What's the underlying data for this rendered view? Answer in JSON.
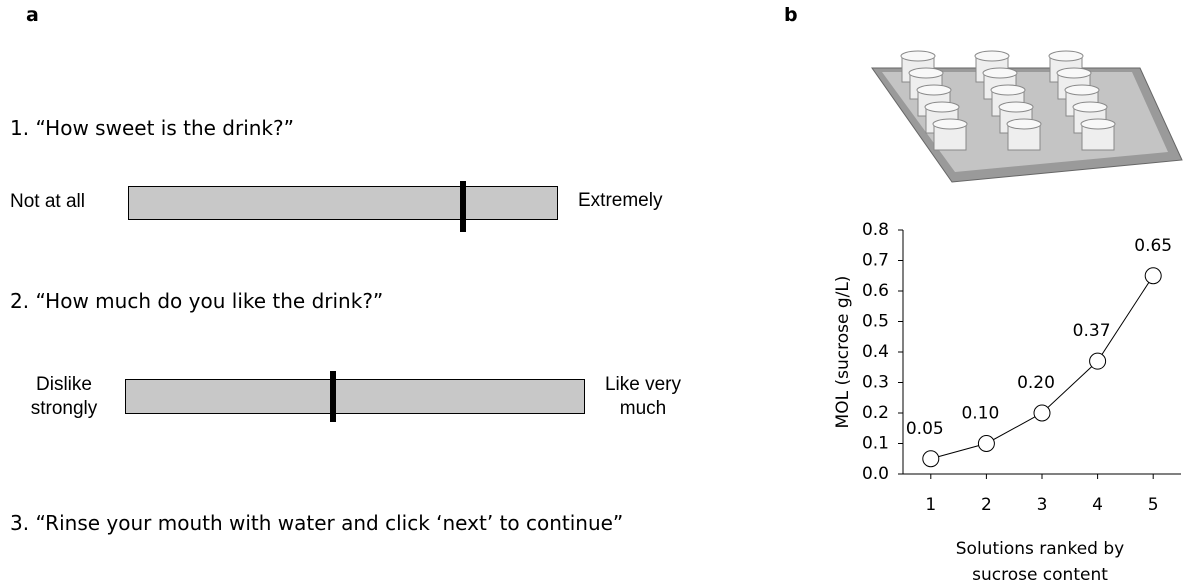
{
  "panel_a": {
    "label": "a",
    "questions": [
      "1. “How sweet is the drink?”",
      "2. “How much do you like the drink?”",
      "3. “Rinse your mouth with water and click ‘next’ to continue”"
    ],
    "scales": [
      {
        "left": "Not at all",
        "right": "Extremely"
      },
      {
        "left": "Dislike strongly",
        "right": "Like very much"
      }
    ]
  },
  "panel_b": {
    "label": "b"
  },
  "chart_data": {
    "type": "line",
    "x": [
      1,
      2,
      3,
      4,
      5
    ],
    "values": [
      0.05,
      0.1,
      0.2,
      0.37,
      0.65
    ],
    "value_labels": [
      "0.05",
      "0.10",
      "0.20",
      "0.37",
      "0.65"
    ],
    "color": "#000000",
    "xlim": [
      0.5,
      5.5
    ],
    "xticks": [
      1,
      2,
      3,
      4,
      5
    ],
    "ylim": [
      0,
      0.8
    ],
    "yticks": [
      {
        "value": 0,
        "label": "0.0"
      },
      0.1,
      0.2,
      0.3,
      0.4,
      0.5,
      0.6,
      0.7,
      0.8
    ],
    "y_label": "MOL (sucrose g/L)",
    "x_label": "Solutions ranked by sucrose content"
  }
}
